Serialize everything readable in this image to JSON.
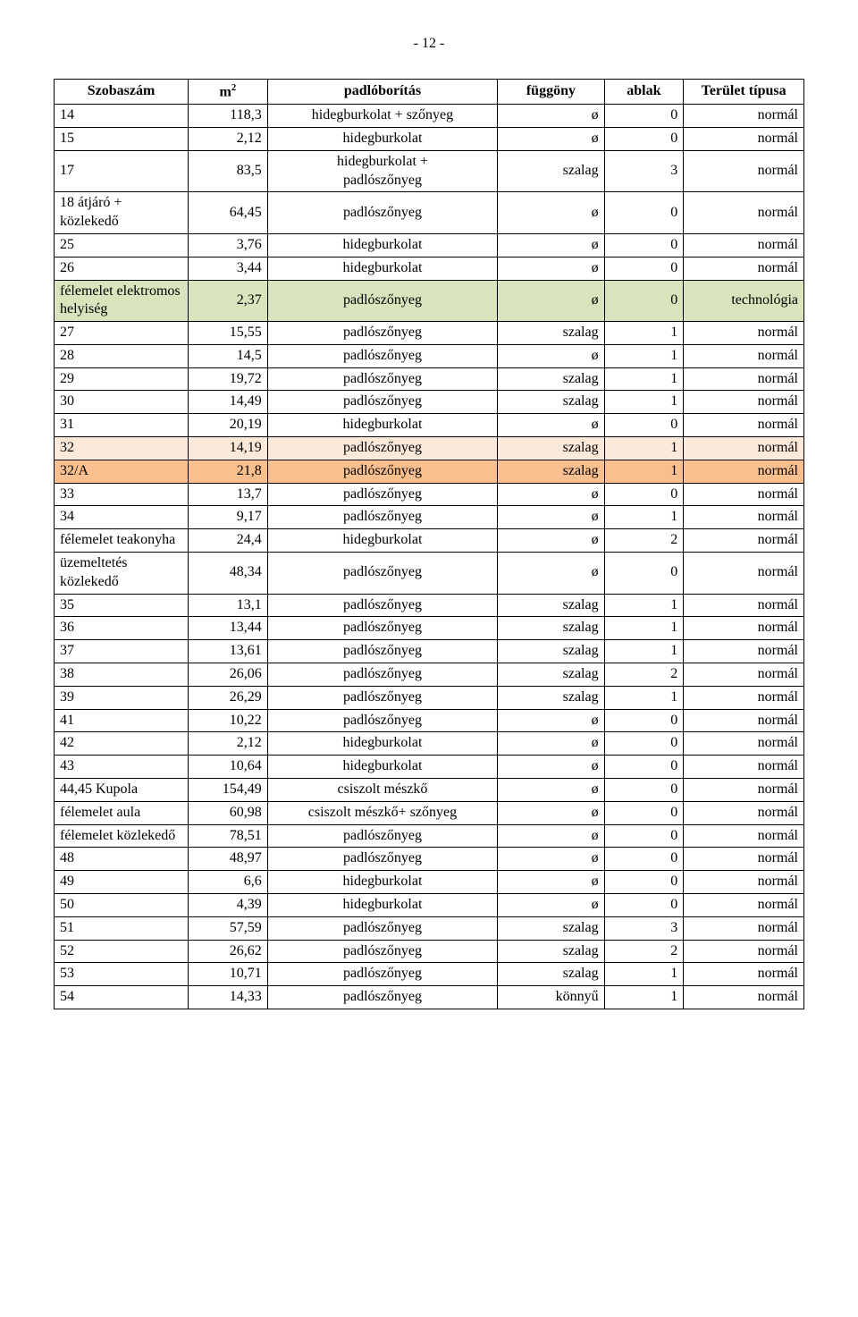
{
  "pageNumber": "- 12 -",
  "table": {
    "columns": [
      "Szobaszám",
      "m2",
      "padlóborítás",
      "függöny",
      "ablak",
      "Terület típusa"
    ],
    "m2_sup": "2",
    "m2_base": "m",
    "rowColors": {
      "default": "#ffffff",
      "green": "#d8e4bc",
      "orangeLight": "#fde9d9",
      "orangeDark": "#fabf8f"
    },
    "rows": [
      {
        "room": "14",
        "m2": "118,3",
        "floor": "hidegburkolat + szőnyeg",
        "curtain": "ø",
        "window": "0",
        "type": "normál",
        "bg": "default"
      },
      {
        "room": "15",
        "m2": "2,12",
        "floor": "hidegburkolat",
        "curtain": "ø",
        "window": "0",
        "type": "normál",
        "bg": "default"
      },
      {
        "room": "17",
        "m2": "83,5",
        "floor": "hidegburkolat + padlószőnyeg",
        "curtain": "szalag",
        "window": "3",
        "type": "normál",
        "bg": "default",
        "multiFloor": true
      },
      {
        "room": "18 átjáró + közlekedő",
        "m2": "64,45",
        "floor": "padlószőnyeg",
        "curtain": "ø",
        "window": "0",
        "type": "normál",
        "bg": "default",
        "multiRoom": true
      },
      {
        "room": "25",
        "m2": "3,76",
        "floor": "hidegburkolat",
        "curtain": "ø",
        "window": "0",
        "type": "normál",
        "bg": "default"
      },
      {
        "room": "26",
        "m2": "3,44",
        "floor": "hidegburkolat",
        "curtain": "ø",
        "window": "0",
        "type": "normál",
        "bg": "default"
      },
      {
        "room": "félemelet elektromos helyiség",
        "m2": "2,37",
        "floor": "padlószőnyeg",
        "curtain": "ø",
        "window": "0",
        "type": "technológia",
        "bg": "green",
        "multiRoom": true
      },
      {
        "room": "27",
        "m2": "15,55",
        "floor": "padlószőnyeg",
        "curtain": "szalag",
        "window": "1",
        "type": "normál",
        "bg": "default"
      },
      {
        "room": "28",
        "m2": "14,5",
        "floor": "padlószőnyeg",
        "curtain": "ø",
        "window": "1",
        "type": "normál",
        "bg": "default"
      },
      {
        "room": "29",
        "m2": "19,72",
        "floor": "padlószőnyeg",
        "curtain": "szalag",
        "window": "1",
        "type": "normál",
        "bg": "default"
      },
      {
        "room": "30",
        "m2": "14,49",
        "floor": "padlószőnyeg",
        "curtain": "szalag",
        "window": "1",
        "type": "normál",
        "bg": "default"
      },
      {
        "room": "31",
        "m2": "20,19",
        "floor": "hidegburkolat",
        "curtain": "ø",
        "window": "0",
        "type": "normál",
        "bg": "default"
      },
      {
        "room": "32",
        "m2": "14,19",
        "floor": "padlószőnyeg",
        "curtain": "szalag",
        "window": "1",
        "type": "normál",
        "bg": "orangeLight"
      },
      {
        "room": "32/A",
        "m2": "21,8",
        "floor": "padlószőnyeg",
        "curtain": "szalag",
        "window": "1",
        "type": "normál",
        "bg": "orangeDark"
      },
      {
        "room": "33",
        "m2": "13,7",
        "floor": "padlószőnyeg",
        "curtain": "ø",
        "window": "0",
        "type": "normál",
        "bg": "default"
      },
      {
        "room": "34",
        "m2": "9,17",
        "floor": "padlószőnyeg",
        "curtain": "ø",
        "window": "1",
        "type": "normál",
        "bg": "default"
      },
      {
        "room": "félemelet teakonyha",
        "m2": "24,4",
        "floor": "hidegburkolat",
        "curtain": "ø",
        "window": "2",
        "type": "normál",
        "bg": "default",
        "multiRoom": true
      },
      {
        "room": "üzemeltetés közlekedő",
        "m2": "48,34",
        "floor": "padlószőnyeg",
        "curtain": "ø",
        "window": "0",
        "type": "normál",
        "bg": "default",
        "multiRoom": true
      },
      {
        "room": "35",
        "m2": "13,1",
        "floor": "padlószőnyeg",
        "curtain": "szalag",
        "window": "1",
        "type": "normál",
        "bg": "default"
      },
      {
        "room": "36",
        "m2": "13,44",
        "floor": "padlószőnyeg",
        "curtain": "szalag",
        "window": "1",
        "type": "normál",
        "bg": "default"
      },
      {
        "room": "37",
        "m2": "13,61",
        "floor": "padlószőnyeg",
        "curtain": "szalag",
        "window": "1",
        "type": "normál",
        "bg": "default"
      },
      {
        "room": "38",
        "m2": "26,06",
        "floor": "padlószőnyeg",
        "curtain": "szalag",
        "window": "2",
        "type": "normál",
        "bg": "default"
      },
      {
        "room": "39",
        "m2": "26,29",
        "floor": "padlószőnyeg",
        "curtain": "szalag",
        "window": "1",
        "type": "normál",
        "bg": "default"
      },
      {
        "room": "41",
        "m2": "10,22",
        "floor": "padlószőnyeg",
        "curtain": "ø",
        "window": "0",
        "type": "normál",
        "bg": "default"
      },
      {
        "room": "42",
        "m2": "2,12",
        "floor": "hidegburkolat",
        "curtain": "ø",
        "window": "0",
        "type": "normál",
        "bg": "default"
      },
      {
        "room": "43",
        "m2": "10,64",
        "floor": "hidegburkolat",
        "curtain": "ø",
        "window": "0",
        "type": "normál",
        "bg": "default"
      },
      {
        "room": "44,45 Kupola",
        "m2": "154,49",
        "floor": "csiszolt mészkő",
        "curtain": "ø",
        "window": "0",
        "type": "normál",
        "bg": "default"
      },
      {
        "room": "félemelet aula",
        "m2": "60,98",
        "floor": "csiszolt mészkő+ szőnyeg",
        "curtain": "ø",
        "window": "0",
        "type": "normál",
        "bg": "default"
      },
      {
        "room": "félemelet közlekedő",
        "m2": "78,51",
        "floor": "padlószőnyeg",
        "curtain": "ø",
        "window": "0",
        "type": "normál",
        "bg": "default",
        "multiRoom": true
      },
      {
        "room": "48",
        "m2": "48,97",
        "floor": "padlószőnyeg",
        "curtain": "ø",
        "window": "0",
        "type": "normál",
        "bg": "default"
      },
      {
        "room": "49",
        "m2": "6,6",
        "floor": "hidegburkolat",
        "curtain": "ø",
        "window": "0",
        "type": "normál",
        "bg": "default"
      },
      {
        "room": "50",
        "m2": "4,39",
        "floor": "hidegburkolat",
        "curtain": "ø",
        "window": "0",
        "type": "normál",
        "bg": "default"
      },
      {
        "room": "51",
        "m2": "57,59",
        "floor": "padlószőnyeg",
        "curtain": "szalag",
        "window": "3",
        "type": "normál",
        "bg": "default"
      },
      {
        "room": "52",
        "m2": "26,62",
        "floor": "padlószőnyeg",
        "curtain": "szalag",
        "window": "2",
        "type": "normál",
        "bg": "default"
      },
      {
        "room": "53",
        "m2": "10,71",
        "floor": "padlószőnyeg",
        "curtain": "szalag",
        "window": "1",
        "type": "normál",
        "bg": "default"
      },
      {
        "room": "54",
        "m2": "14,33",
        "floor": "padlószőnyeg",
        "curtain": "könnyű",
        "window": "1",
        "type": "normál",
        "bg": "default"
      }
    ]
  }
}
